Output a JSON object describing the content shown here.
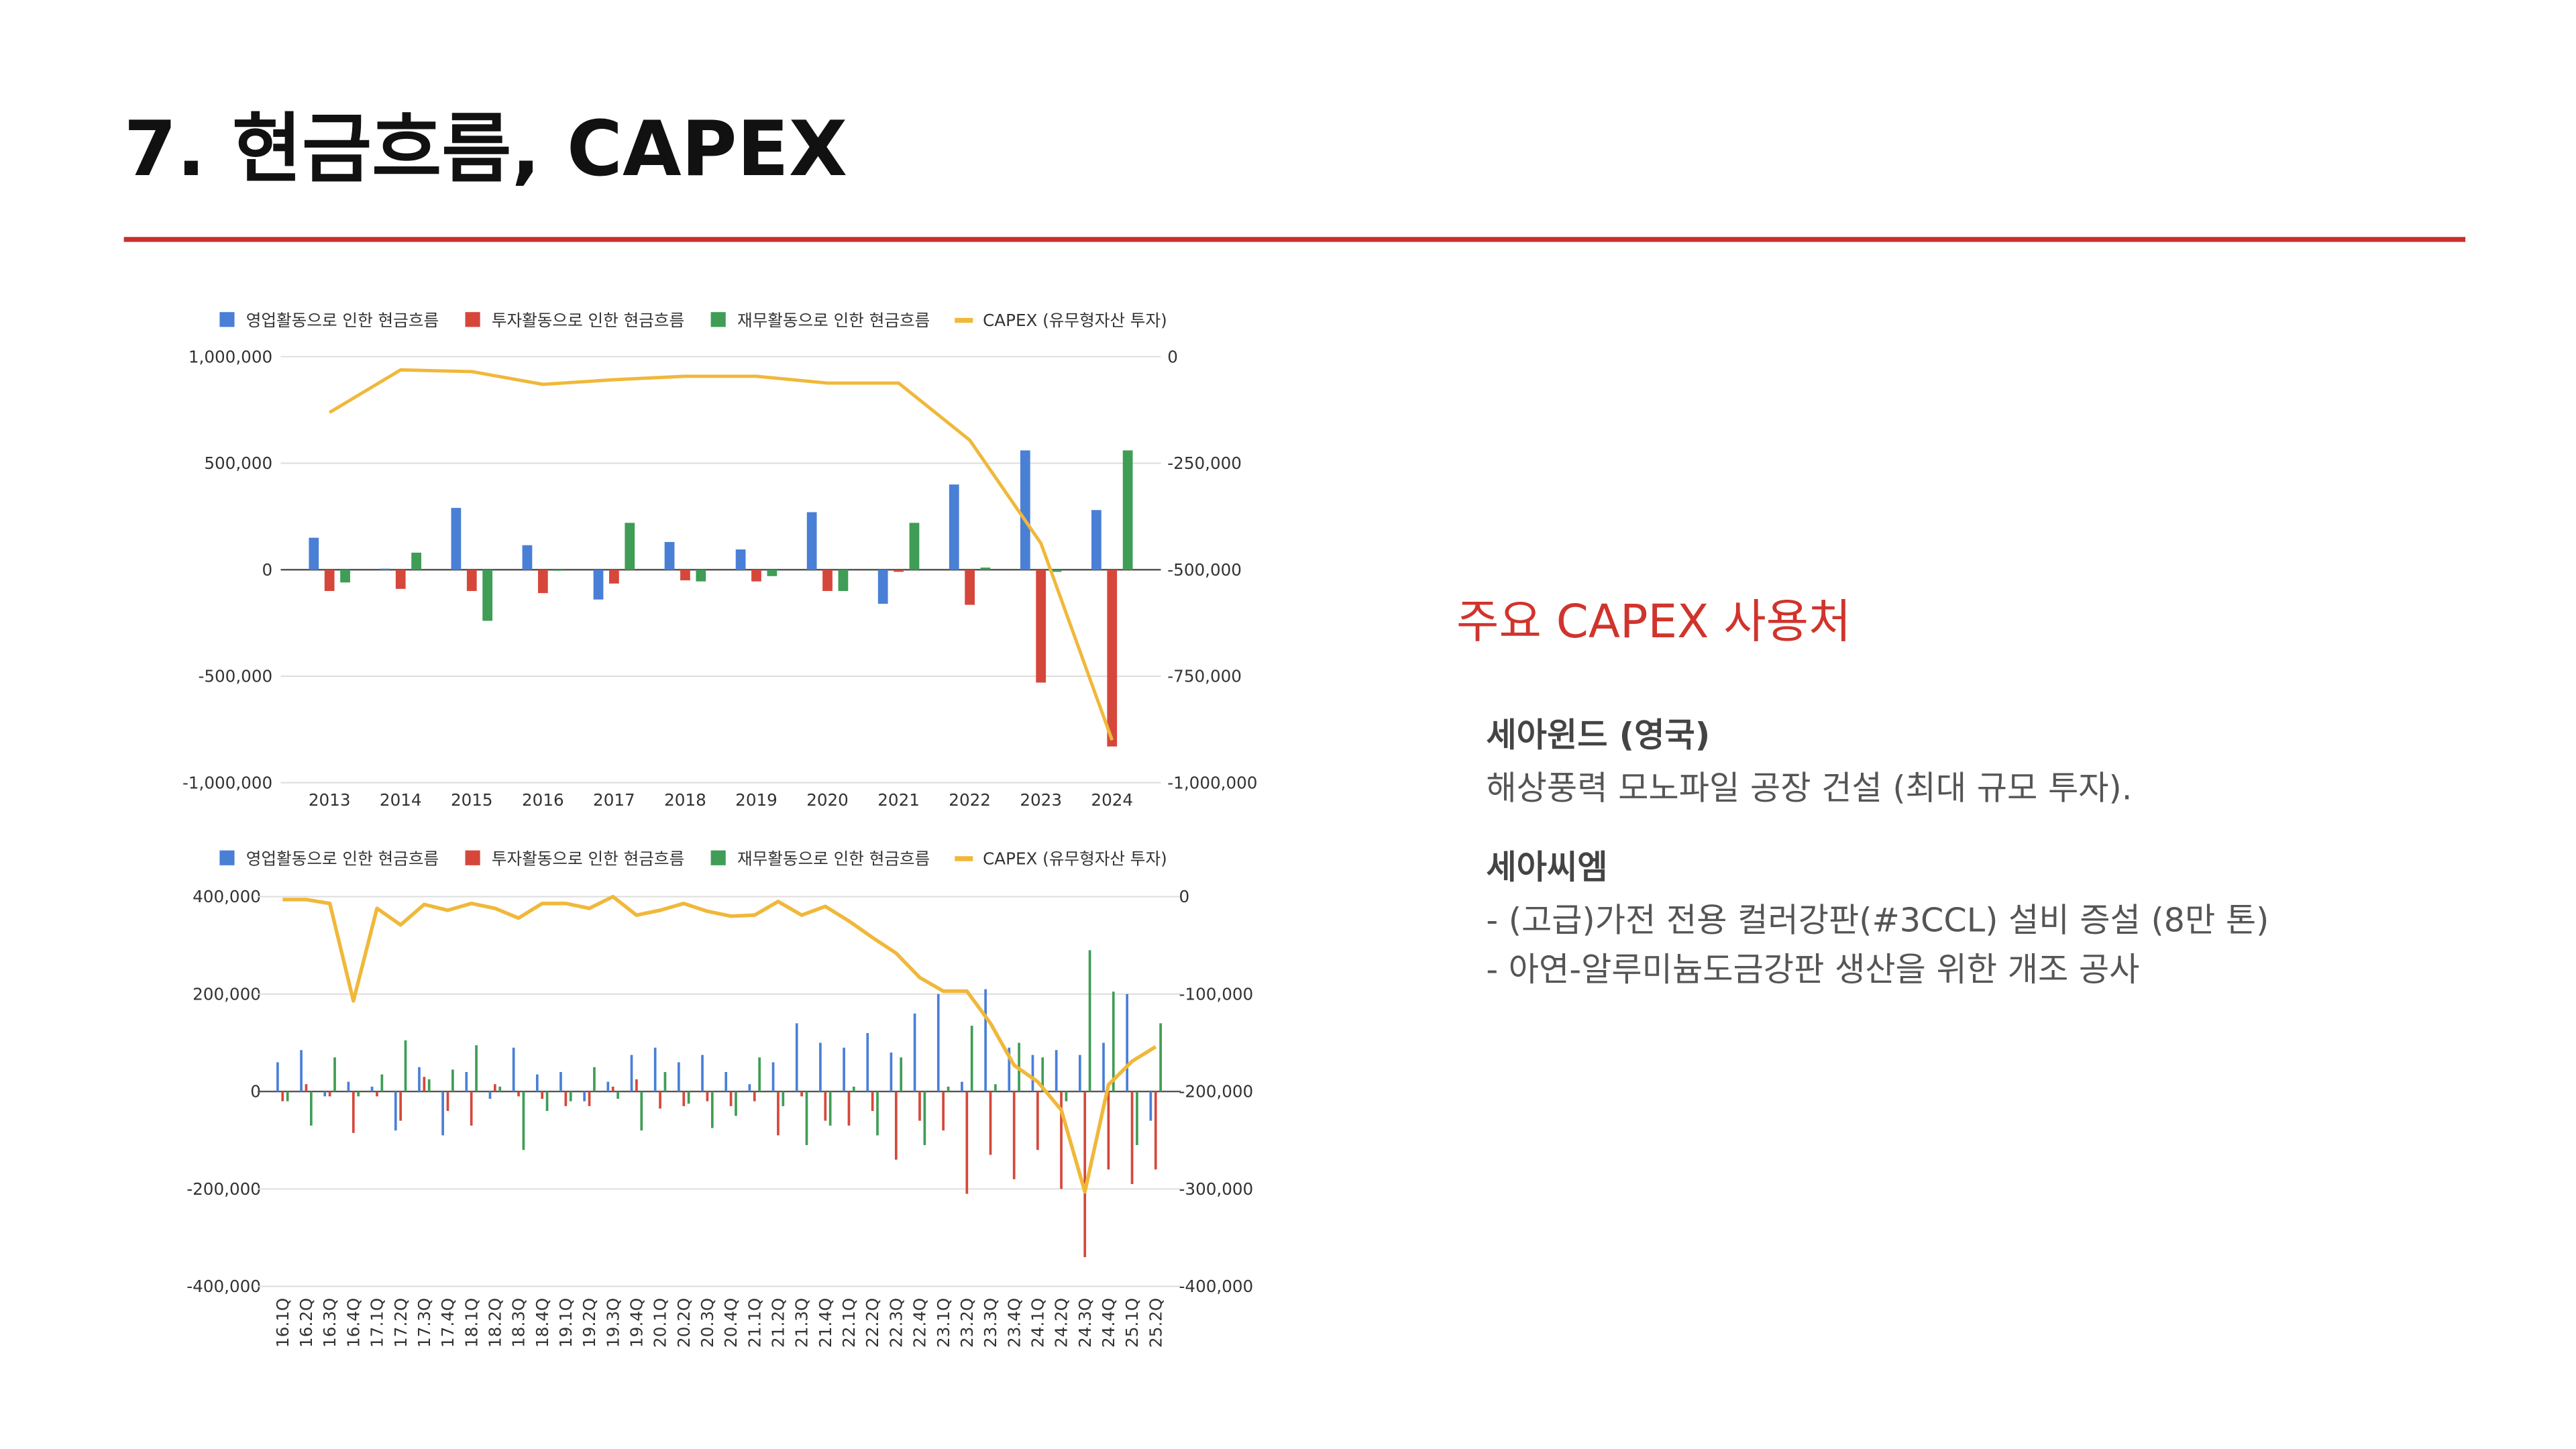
{
  "slide": {
    "title": "7. 현금흐름, CAPEX"
  },
  "chart_data": [
    {
      "type": "combo",
      "categories": [
        "2013",
        "2014",
        "2015",
        "2016",
        "2017",
        "2018",
        "2019",
        "2020",
        "2021",
        "2022",
        "2023",
        "2024"
      ],
      "series": [
        {
          "name": "영업활동으로 인한 현금흐름",
          "type": "bar",
          "color": "#4a7fd6",
          "values": [
            150000,
            5000,
            290000,
            115000,
            -140000,
            130000,
            95000,
            270000,
            -160000,
            400000,
            560000,
            280000
          ]
        },
        {
          "name": "투자활동으로 인한 현금흐름",
          "type": "bar",
          "color": "#d6473b",
          "values": [
            -100000,
            -90000,
            -100000,
            -110000,
            -65000,
            -50000,
            -55000,
            -100000,
            -10000,
            -165000,
            -530000,
            -830000
          ]
        },
        {
          "name": "재무활동으로 인한 현금흐름",
          "type": "bar",
          "color": "#3f9d55",
          "values": [
            -60000,
            80000,
            -240000,
            -5000,
            220000,
            -55000,
            -30000,
            -100000,
            220000,
            10000,
            -10000,
            560000
          ]
        },
        {
          "name": "CAPEX (유무형자산 투자)",
          "type": "line",
          "axis": "y2",
          "color": "#f0b83a",
          "values": [
            -131000,
            -31000,
            -35000,
            -65000,
            -54000,
            -46000,
            -46000,
            -62000,
            -62000,
            -196000,
            -438000,
            -900000
          ]
        }
      ],
      "ylim": [
        -1000000,
        1000000
      ],
      "yticks": [
        {
          "value": -1000000,
          "label": "-1,000,000"
        },
        {
          "value": -500000,
          "label": "-500,000"
        },
        0,
        {
          "value": 500000,
          "label": "500,000"
        },
        {
          "value": 1000000,
          "label": "1,000,000"
        }
      ],
      "y2lim": [
        -1000000,
        0
      ],
      "y2ticks": [
        {
          "value": -1000000,
          "label": "-1,000,000"
        },
        {
          "value": -750000,
          "label": "-750,000"
        },
        {
          "value": -500000,
          "label": "-500,000"
        },
        {
          "value": -250000,
          "label": "-250,000"
        },
        0
      ],
      "grid": true,
      "legend": "top"
    },
    {
      "type": "combo",
      "categories": [
        "16.1Q",
        "16.2Q",
        "16.3Q",
        "16.4Q",
        "17.1Q",
        "17.2Q",
        "17.3Q",
        "17.4Q",
        "18.1Q",
        "18.2Q",
        "18.3Q",
        "18.4Q",
        "19.1Q",
        "19.2Q",
        "19.3Q",
        "19.4Q",
        "20.1Q",
        "20.2Q",
        "20.3Q",
        "20.4Q",
        "21.1Q",
        "21.2Q",
        "21.3Q",
        "21.4Q",
        "22.1Q",
        "22.2Q",
        "22.3Q",
        "22.4Q",
        "23.1Q",
        "23.2Q",
        "23.3Q",
        "23.4Q",
        "24.1Q",
        "24.2Q",
        "24.3Q",
        "24.4Q",
        "25.1Q",
        "25.2Q"
      ],
      "series": [
        {
          "name": "영업활동으로 인한 현금흐름",
          "type": "bar",
          "color": "#4a7fd6",
          "values": [
            60000,
            85000,
            -10000,
            20000,
            10000,
            -80000,
            50000,
            -90000,
            40000,
            -15000,
            90000,
            35000,
            40000,
            -20000,
            20000,
            75000,
            90000,
            60000,
            75000,
            40000,
            15000,
            60000,
            140000,
            100000,
            90000,
            120000,
            80000,
            160000,
            200000,
            20000,
            210000,
            90000,
            75000,
            85000,
            75000,
            100000,
            200000,
            -60000
          ]
        },
        {
          "name": "투자활동으로 인한 현금흐름",
          "type": "bar",
          "color": "#d6473b",
          "values": [
            -20000,
            15000,
            -10000,
            -85000,
            -10000,
            -60000,
            30000,
            -40000,
            -70000,
            15000,
            -10000,
            -15000,
            -30000,
            -30000,
            10000,
            25000,
            -35000,
            -30000,
            -20000,
            -30000,
            -20000,
            -90000,
            -10000,
            -60000,
            -70000,
            -40000,
            -140000,
            -60000,
            -80000,
            -210000,
            -130000,
            -180000,
            -120000,
            -200000,
            -340000,
            -160000,
            -190000,
            -160000
          ]
        },
        {
          "name": "재무활동으로 인한 현금흐름",
          "type": "bar",
          "color": "#3f9d55",
          "values": [
            -20000,
            -70000,
            70000,
            -10000,
            35000,
            105000,
            25000,
            45000,
            95000,
            10000,
            -120000,
            -40000,
            -20000,
            50000,
            -15000,
            -80000,
            40000,
            -25000,
            -75000,
            -50000,
            70000,
            -30000,
            -110000,
            -70000,
            10000,
            -90000,
            70000,
            -110000,
            10000,
            135000,
            15000,
            100000,
            70000,
            -20000,
            290000,
            205000,
            -110000,
            140000
          ]
        },
        {
          "name": "CAPEX (유무형자산 투자)",
          "type": "line",
          "axis": "y2",
          "color": "#f0b83a",
          "values": [
            -3000,
            -3000,
            -7000,
            -107000,
            -12000,
            -29000,
            -8000,
            -14000,
            -7000,
            -12000,
            -22000,
            -7000,
            -7000,
            -12000,
            0,
            -19000,
            -14000,
            -7000,
            -15000,
            -20000,
            -19000,
            -5000,
            -19000,
            -10000,
            -25000,
            -42000,
            -58000,
            -83000,
            -97000,
            -97000,
            -130000,
            -173000,
            -190000,
            -219000,
            -303000,
            -193000,
            -169000,
            -154000
          ]
        }
      ],
      "ylim": [
        -400000,
        400000
      ],
      "yticks": [
        {
          "value": -400000,
          "label": "-400,000"
        },
        {
          "value": -200000,
          "label": "-200,000"
        },
        0,
        {
          "value": 200000,
          "label": "200,000"
        },
        {
          "value": 400000,
          "label": "400,000"
        }
      ],
      "y2lim": [
        -400000,
        0
      ],
      "y2ticks": [
        {
          "value": -400000,
          "label": "-400,000"
        },
        {
          "value": -300000,
          "label": "-300,000"
        },
        {
          "value": -200000,
          "label": "-200,000"
        },
        {
          "value": -100000,
          "label": "-100,000"
        },
        0
      ],
      "grid": true,
      "legend": "top"
    }
  ],
  "capex_uses": {
    "heading": "주요 CAPEX 사용처",
    "items": [
      {
        "name": "세아윈드 (영국)",
        "lines": [
          "해상풍력 모노파일 공장 건설 (최대 규모 투자)."
        ]
      },
      {
        "name": "세아씨엠",
        "lines": [
          "- (고급)가전 전용 컬러강판(#3CCL) 설비 증설 (8만 톤)",
          "- 아연-알루미늄도금강판 생산을 위한 개조 공사"
        ]
      }
    ]
  }
}
